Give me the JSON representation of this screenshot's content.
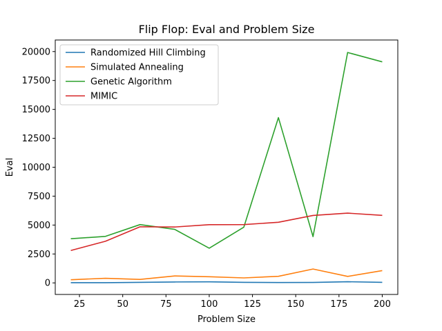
{
  "chart_data": {
    "type": "line",
    "title": "Flip Flop: Eval and Problem Size",
    "xlabel": "Problem Size",
    "ylabel": "Eval",
    "xlim": [
      11,
      209
    ],
    "ylim": [
      -1000,
      21000
    ],
    "xticks": [
      25,
      50,
      75,
      100,
      125,
      150,
      175,
      200
    ],
    "yticks": [
      0,
      2500,
      5000,
      7500,
      10000,
      12500,
      15000,
      17500,
      20000
    ],
    "grid": false,
    "legend_position": "top-left",
    "x": [
      20,
      40,
      60,
      80,
      100,
      120,
      140,
      160,
      180,
      200
    ],
    "series": [
      {
        "name": "Randomized Hill Climbing",
        "color": "#1f77b4",
        "values": [
          20,
          15,
          50,
          80,
          90,
          50,
          30,
          40,
          100,
          50
        ]
      },
      {
        "name": "Simulated Annealing",
        "color": "#ff7f0e",
        "values": [
          270,
          400,
          300,
          600,
          530,
          430,
          570,
          1200,
          560,
          1060
        ]
      },
      {
        "name": "Genetic Algorithm",
        "color": "#2ca02c",
        "values": [
          3820,
          4020,
          5040,
          4630,
          3000,
          4820,
          14290,
          4000,
          19920,
          19110
        ]
      },
      {
        "name": "MIMIC",
        "color": "#d62728",
        "values": [
          2800,
          3600,
          4850,
          4830,
          5030,
          5040,
          5240,
          5830,
          6030,
          5840
        ]
      }
    ]
  }
}
